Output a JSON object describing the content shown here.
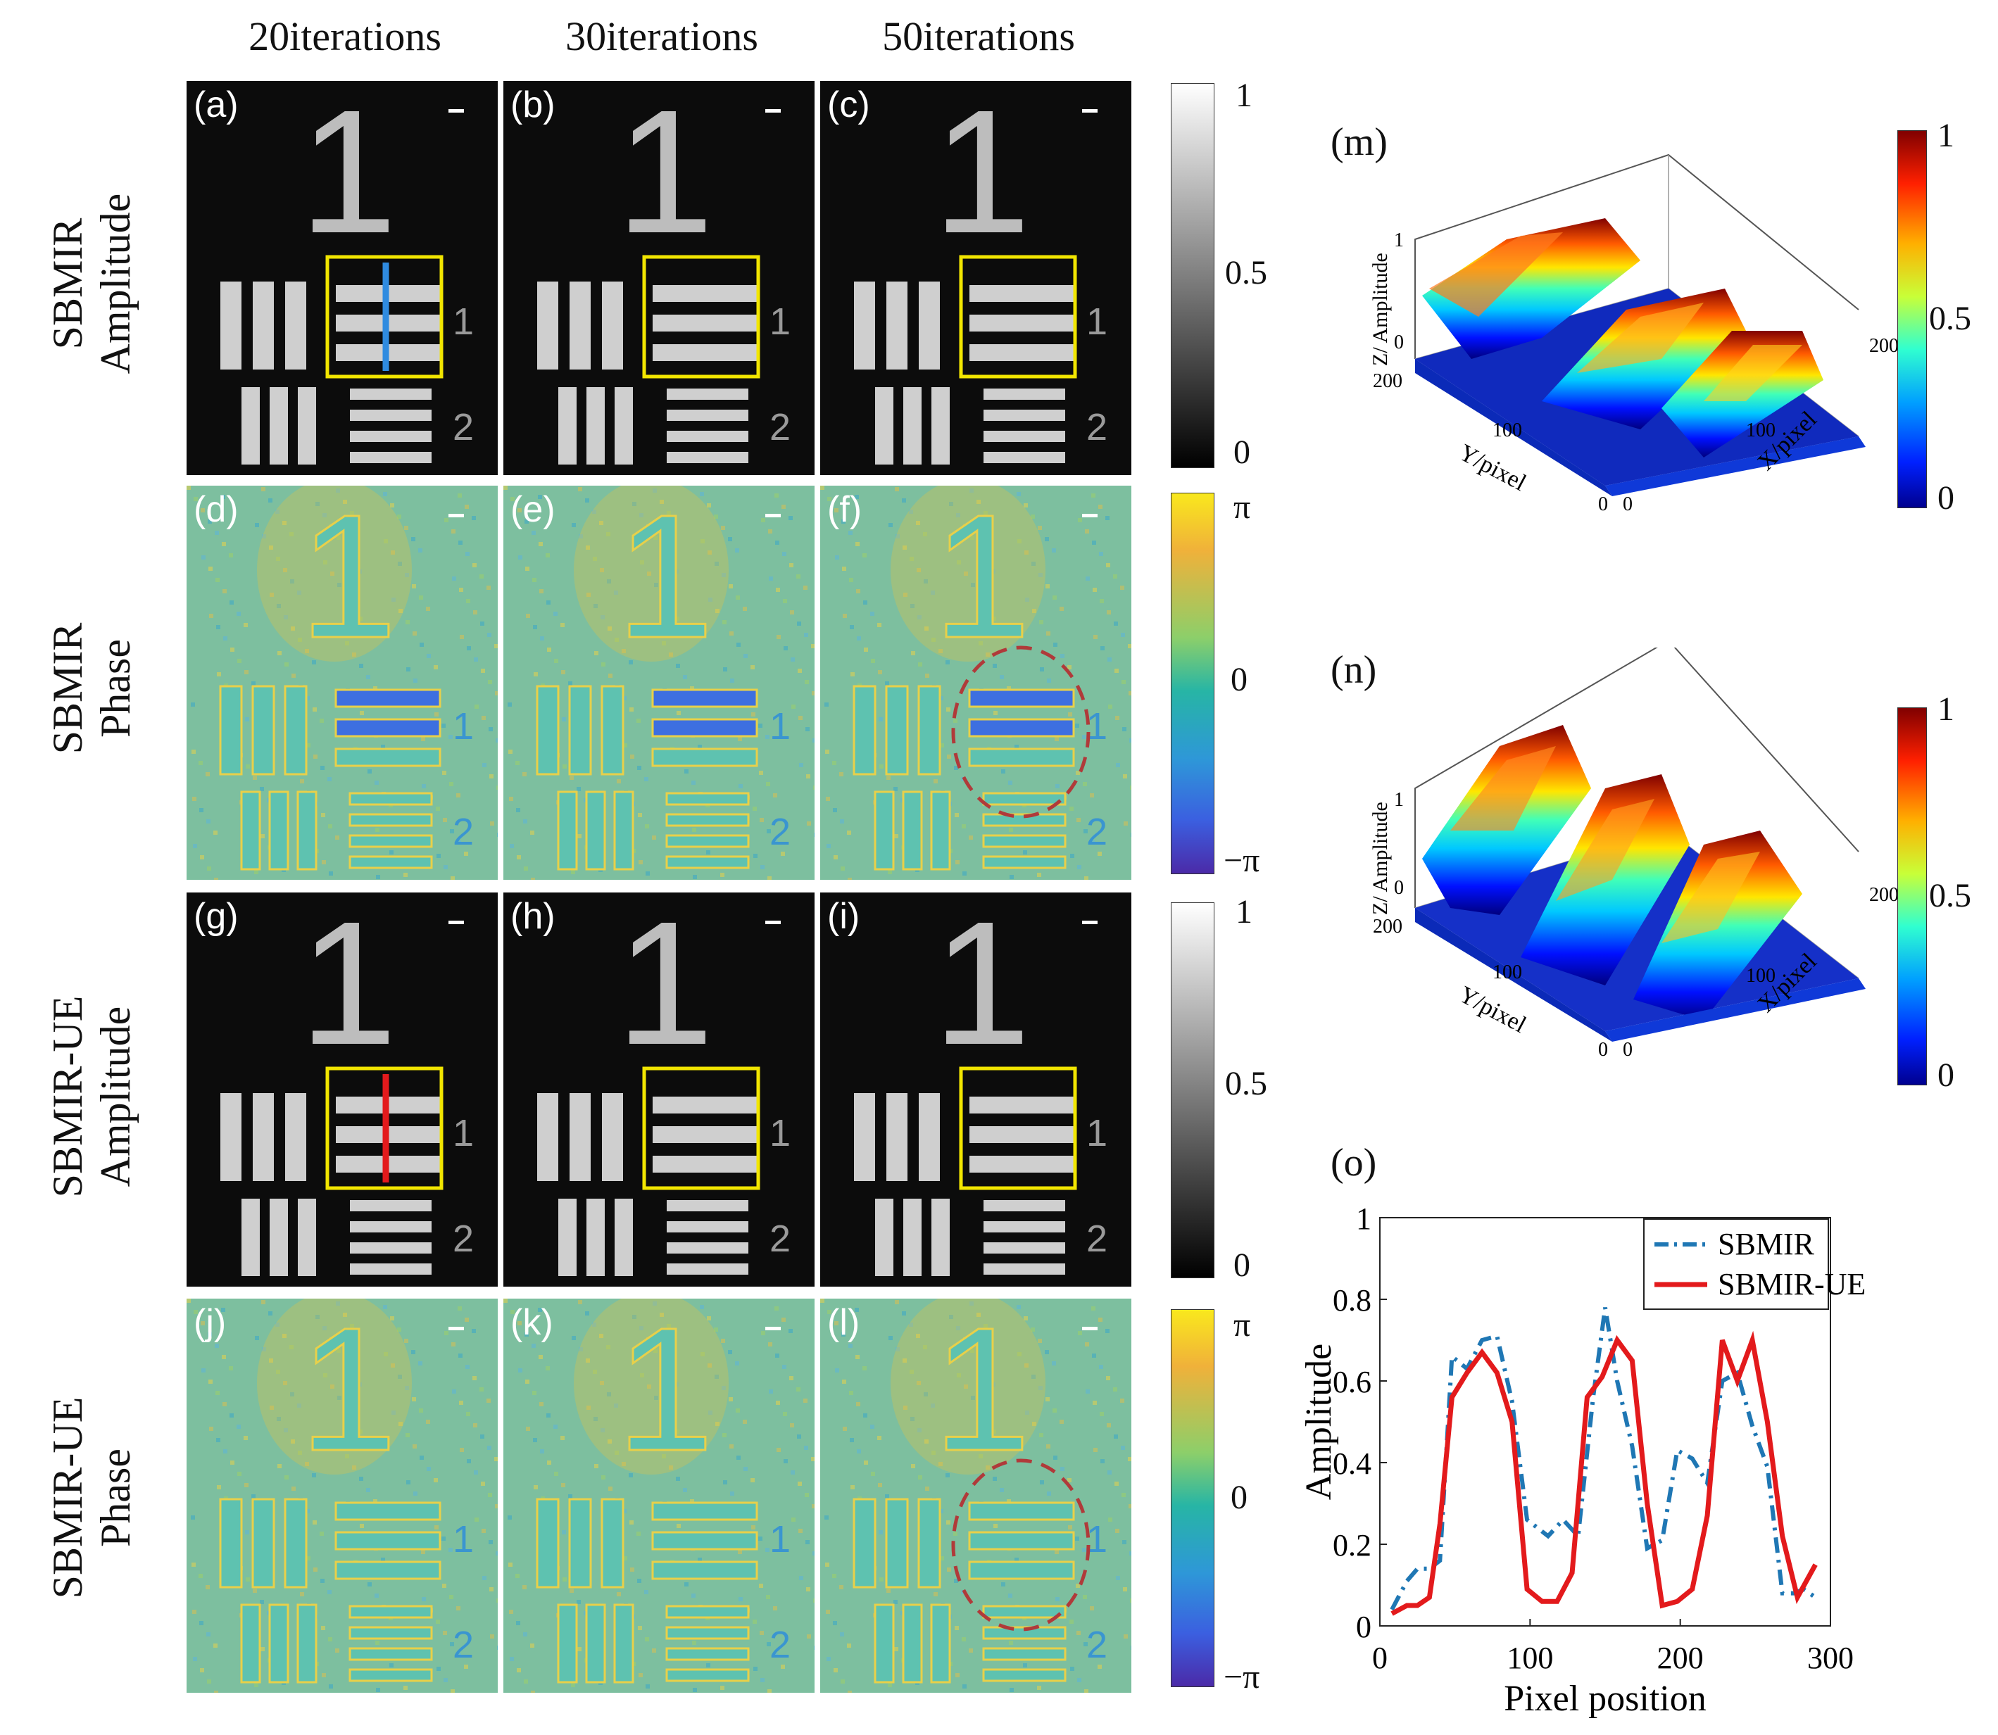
{
  "columns": [
    "20iterations",
    "30iterations",
    "50iterations"
  ],
  "rows": [
    "SBMIR\nAmplitude",
    "SBMIR\nPhase",
    "SBMIR-UE\nAmplitude",
    "SBMIR-UE\nPhase"
  ],
  "panel_labels": [
    "(a)",
    "(b)",
    "(c)",
    "(d)",
    "(e)",
    "(f)",
    "(g)",
    "(h)",
    "(i)",
    "(j)",
    "(k)",
    "(l)"
  ],
  "target_text": {
    "one": "1",
    "two": "2"
  },
  "colorbars": {
    "gray": {
      "top": "1",
      "mid": "0.5",
      "bottom": "0"
    },
    "phase": {
      "top": "π",
      "mid": "0",
      "bottom": "−π"
    },
    "jet": {
      "top": "1",
      "mid": "0.5",
      "bottom": "0"
    }
  },
  "surface_m": {
    "label": "(m)",
    "zlabel": "Z/ Amplitude",
    "xlabel": "X/pixel",
    "ylabel": "Y/pixel",
    "z_ticks": [
      "1",
      "0"
    ],
    "y_ticks": [
      "200",
      "100",
      "0"
    ],
    "x_ticks": [
      "200",
      "100",
      "0"
    ]
  },
  "surface_n": {
    "label": "(n)",
    "zlabel": "Z/ Amplitude",
    "xlabel": "X/pixel",
    "ylabel": "Y/pixel",
    "z_ticks": [
      "1",
      "0"
    ],
    "y_ticks": [
      "200",
      "100",
      "0"
    ],
    "x_ticks": [
      "200",
      "100",
      "0"
    ]
  },
  "colors": {
    "sbmir": "#1f77b4",
    "sbmir_ue": "#e31a1c",
    "box": "#f2e600",
    "circle": "#b03a3a"
  },
  "chart_data": {
    "type": "line",
    "label": "(o)",
    "xlabel": "Pixel position",
    "ylabel": "Amplitude",
    "xlim": [
      0,
      300
    ],
    "ylim": [
      0,
      1
    ],
    "x_ticks": [
      "0",
      "100",
      "200",
      "300"
    ],
    "y_ticks": [
      "0",
      "0.2",
      "0.4",
      "0.6",
      "0.8",
      "1"
    ],
    "legend": "top-right",
    "series": [
      {
        "name": "SBMIR",
        "style": "dash-dot",
        "x": [
          8,
          18,
          25,
          33,
          40,
          48,
          58,
          68,
          78,
          88,
          98,
          112,
          122,
          132,
          142,
          150,
          158,
          168,
          178,
          188,
          198,
          208,
          218,
          228,
          238,
          248,
          258,
          268,
          276,
          282,
          290
        ],
        "y": [
          0.04,
          0.11,
          0.14,
          0.14,
          0.16,
          0.66,
          0.63,
          0.7,
          0.71,
          0.55,
          0.26,
          0.22,
          0.26,
          0.22,
          0.56,
          0.78,
          0.6,
          0.44,
          0.19,
          0.21,
          0.43,
          0.41,
          0.35,
          0.6,
          0.62,
          0.49,
          0.39,
          0.08,
          0.08,
          0.09,
          0.07
        ]
      },
      {
        "name": "SBMIR-UE",
        "style": "solid",
        "x": [
          8,
          18,
          25,
          33,
          40,
          48,
          58,
          68,
          78,
          88,
          98,
          108,
          118,
          128,
          138,
          148,
          158,
          168,
          178,
          188,
          198,
          208,
          218,
          228,
          238,
          248,
          258,
          268,
          278,
          290
        ],
        "y": [
          0.03,
          0.05,
          0.05,
          0.07,
          0.25,
          0.56,
          0.62,
          0.67,
          0.62,
          0.5,
          0.09,
          0.06,
          0.06,
          0.13,
          0.56,
          0.61,
          0.7,
          0.65,
          0.3,
          0.05,
          0.06,
          0.09,
          0.27,
          0.7,
          0.6,
          0.7,
          0.5,
          0.22,
          0.07,
          0.15
        ]
      }
    ]
  }
}
